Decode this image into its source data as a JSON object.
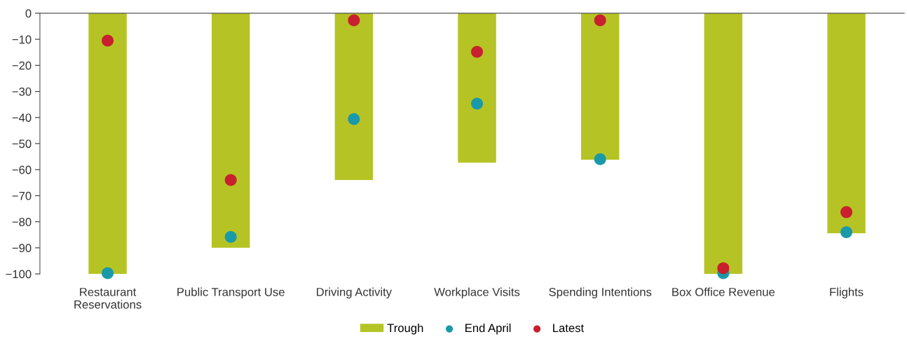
{
  "chart_data": {
    "type": "bar",
    "categories": [
      "Restaurant\nReservations",
      "Public Transport Use",
      "Driving Activity",
      "Workplace Visits",
      "Spending Intentions",
      "Box Office Revenue",
      "Flights"
    ],
    "series": [
      {
        "name": "Trough",
        "color": "#b5c424",
        "values": [
          -100,
          -90,
          -64,
          -57.3,
          -56.2,
          -100,
          -84.4
        ]
      },
      {
        "name": "End April",
        "type": "scatter",
        "color": "#1a9aa8",
        "values": [
          -99.7,
          -85.8,
          -40.6,
          -34.7,
          -56,
          -99.7,
          -84
        ]
      },
      {
        "name": "Latest",
        "type": "scatter",
        "color": "#c8202f",
        "values": [
          -10.5,
          -64,
          -2.7,
          -14.8,
          -2.7,
          -97.8,
          -76.3
        ]
      }
    ],
    "ylim": [
      -100,
      0
    ],
    "yticks": [
      0,
      -10,
      -20,
      -30,
      -40,
      -50,
      -60,
      -70,
      -80,
      -90,
      -100
    ],
    "grid": false,
    "legend": "bottom",
    "marker": "circle"
  }
}
